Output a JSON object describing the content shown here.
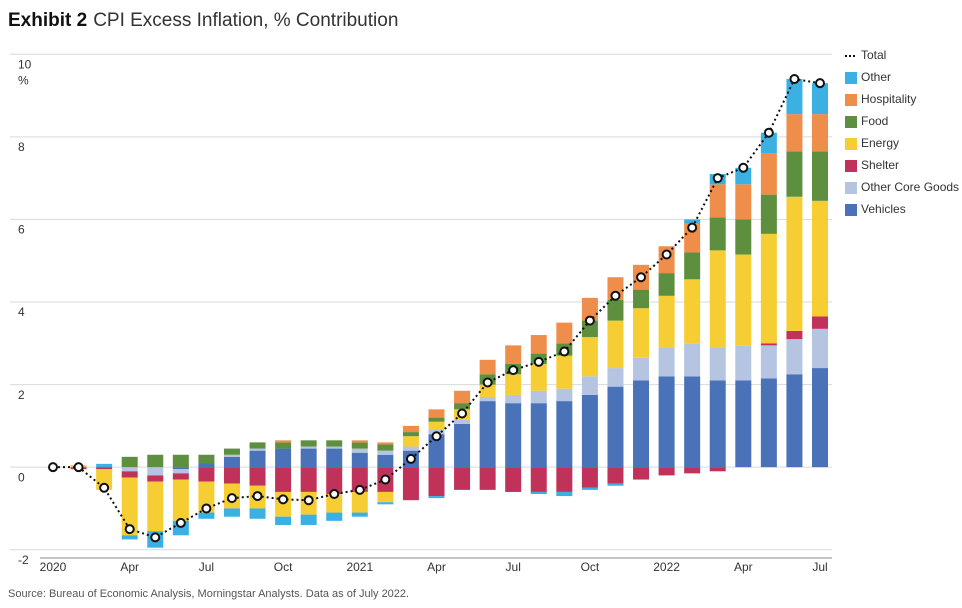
{
  "chart_data": {
    "type": "bar",
    "exhibit": "Exhibit 2",
    "title": "CPI Excess Inflation, % Contribution",
    "source": "Source: Bureau of Economic Analysis, Morningstar Analysts. Data as of July 2022.",
    "y_unit": "%",
    "categories": [
      "2020",
      null,
      null,
      "Apr",
      null,
      null,
      "Jul",
      null,
      null,
      "Oct",
      null,
      null,
      "2021",
      null,
      null,
      "Apr",
      null,
      null,
      "Jul",
      null,
      null,
      "Oct",
      null,
      null,
      "2022",
      null,
      null,
      "Apr",
      null,
      null,
      "Jul"
    ],
    "ylim": [
      -2.2,
      10.2
    ],
    "yticks": [
      -2,
      0,
      2,
      4,
      6,
      8,
      10
    ],
    "grid": true,
    "legend": "right",
    "series": [
      {
        "name": "Total",
        "type": "line",
        "color": "#111111",
        "values": [
          0,
          0,
          -0.5,
          -1.5,
          -1.7,
          -1.35,
          -1.0,
          -0.75,
          -0.7,
          -0.78,
          -0.8,
          -0.65,
          -0.55,
          -0.3,
          0.2,
          0.75,
          1.3,
          2.05,
          2.35,
          2.55,
          2.8,
          3.55,
          4.15,
          4.6,
          5.15,
          5.8,
          7.0,
          7.25,
          8.1,
          9.4,
          9.3
        ]
      },
      {
        "name": "Other",
        "color": "#3bb1e3",
        "values": [
          0,
          0,
          0.08,
          -0.1,
          -0.4,
          -0.35,
          -0.15,
          -0.2,
          -0.25,
          -0.2,
          -0.25,
          -0.2,
          -0.1,
          -0.05,
          0,
          -0.05,
          0,
          0,
          0,
          -0.05,
          -0.1,
          -0.05,
          -0.05,
          0,
          0,
          0.1,
          0.25,
          0.4,
          0.5,
          0.85,
          0.75
        ]
      },
      {
        "name": "Hospitality",
        "color": "#ef8d4b",
        "values": [
          0,
          0,
          0,
          0,
          0,
          0,
          0,
          0,
          0,
          0.05,
          0,
          0,
          0.05,
          0.05,
          0.15,
          0.2,
          0.3,
          0.35,
          0.45,
          0.45,
          0.5,
          0.55,
          0.55,
          0.6,
          0.65,
          0.7,
          0.8,
          0.85,
          1.0,
          0.9,
          0.9
        ]
      },
      {
        "name": "Food",
        "color": "#5e8f3f",
        "values": [
          0,
          0,
          0,
          0.25,
          0.3,
          0.3,
          0.2,
          0.15,
          0.15,
          0.15,
          0.15,
          0.15,
          0.15,
          0.15,
          0.1,
          0.1,
          0.15,
          0.25,
          0.25,
          0.25,
          0.3,
          0.4,
          0.5,
          0.45,
          0.55,
          0.65,
          0.8,
          0.85,
          0.95,
          1.1,
          1.2
        ]
      },
      {
        "name": "Energy",
        "color": "#f6cd33",
        "values": [
          0,
          0.05,
          -0.5,
          -1.4,
          -1.2,
          -1.0,
          -0.75,
          -0.6,
          -0.55,
          -0.6,
          -0.55,
          -0.45,
          -0.5,
          -0.25,
          0.25,
          0.2,
          0.25,
          0.3,
          0.5,
          0.65,
          0.8,
          0.95,
          1.15,
          1.2,
          1.25,
          1.55,
          2.35,
          2.2,
          2.65,
          3.25,
          2.8
        ]
      },
      {
        "name": "Shelter",
        "color": "#c1325b",
        "values": [
          0,
          -0.05,
          -0.05,
          -0.15,
          -0.15,
          -0.15,
          -0.35,
          -0.4,
          -0.45,
          -0.6,
          -0.6,
          -0.65,
          -0.6,
          -0.6,
          -0.8,
          -0.7,
          -0.55,
          -0.55,
          -0.6,
          -0.6,
          -0.6,
          -0.5,
          -0.4,
          -0.3,
          -0.2,
          -0.15,
          -0.1,
          0,
          0.05,
          0.2,
          0.3
        ]
      },
      {
        "name": "Other Core Goods",
        "color": "#b5c5e1",
        "values": [
          0,
          0,
          0,
          -0.1,
          -0.2,
          -0.1,
          0,
          0.05,
          0.05,
          0,
          0.05,
          0.05,
          0.1,
          0.1,
          0.1,
          0.1,
          0.1,
          0.1,
          0.2,
          0.3,
          0.3,
          0.45,
          0.45,
          0.55,
          0.7,
          0.8,
          0.8,
          0.85,
          0.8,
          0.85,
          0.95
        ]
      },
      {
        "name": "Vehicles",
        "color": "#4a72b9",
        "values": [
          0,
          0,
          0,
          0,
          0,
          -0.05,
          0.1,
          0.25,
          0.4,
          0.45,
          0.45,
          0.45,
          0.35,
          0.3,
          0.4,
          0.8,
          1.05,
          1.6,
          1.55,
          1.55,
          1.6,
          1.75,
          1.95,
          2.1,
          2.2,
          2.2,
          2.1,
          2.1,
          2.15,
          2.25,
          2.4
        ]
      }
    ]
  }
}
